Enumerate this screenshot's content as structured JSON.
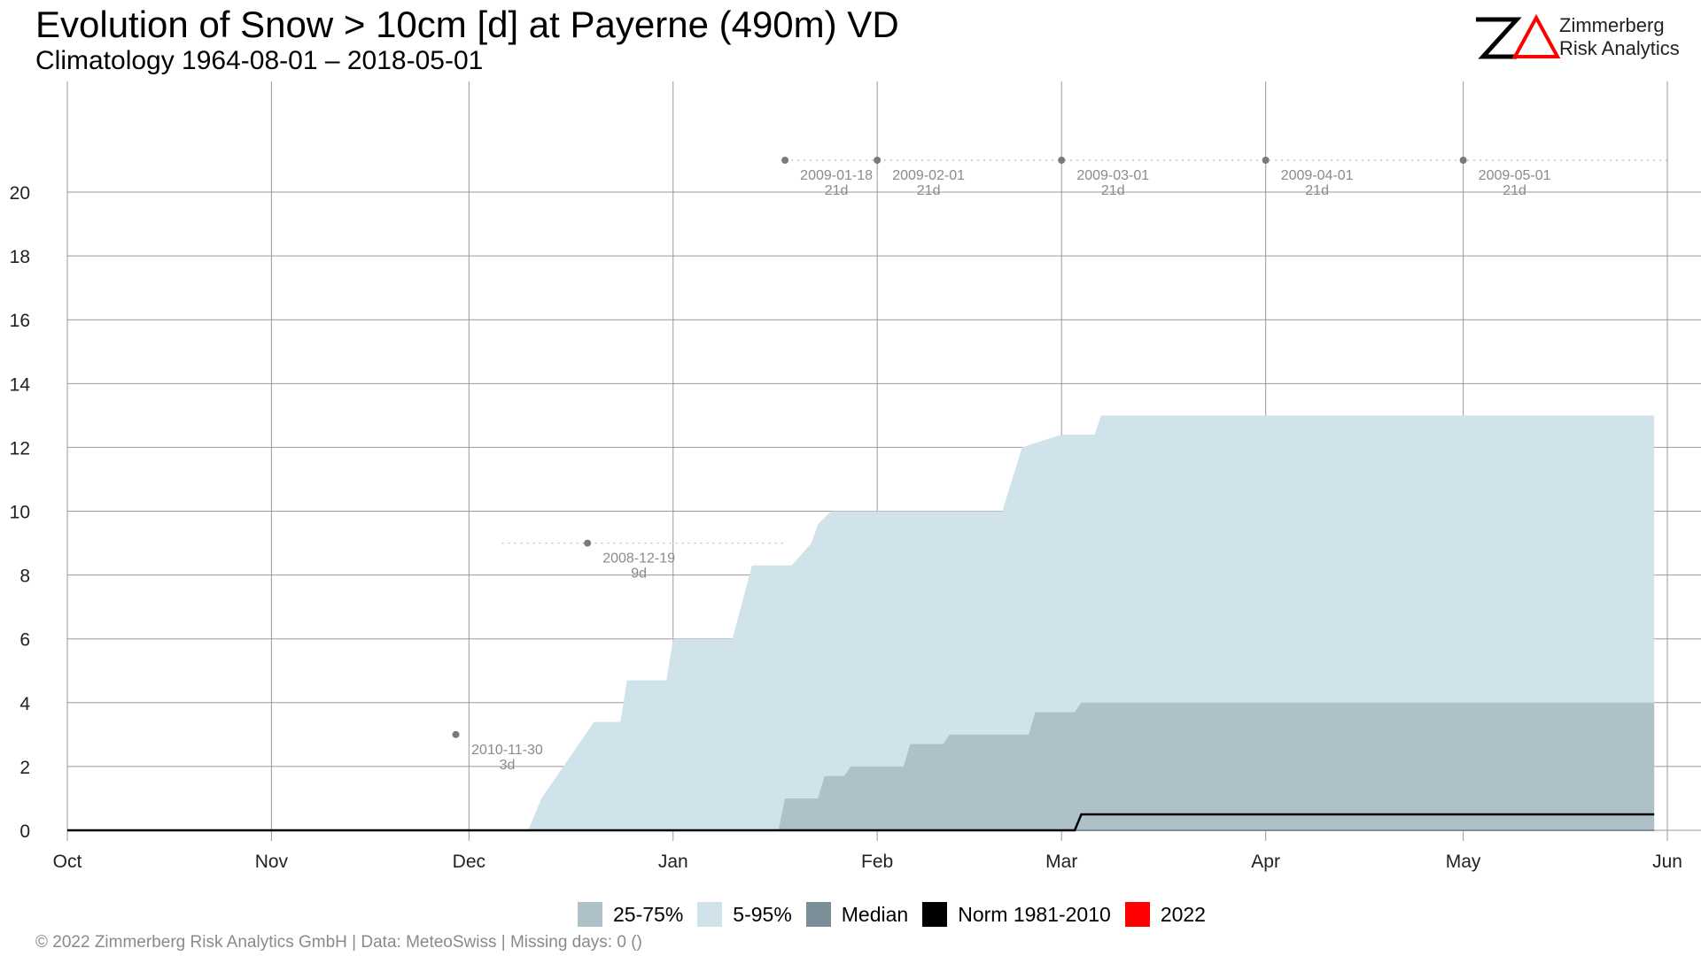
{
  "header": {
    "title": "Evolution of Snow > 10cm [d] at Payerne (490m) VD",
    "subtitle": "Climatology 1964-08-01 – 2018-05-01"
  },
  "logo": {
    "line1": "Zimmerberg",
    "line2": "Risk Analytics",
    "mark_colors": {
      "z": "#000000",
      "delta": "#ff0000"
    }
  },
  "colors": {
    "band_5_95": "#d0e3ea",
    "band_25_75": "#aec1c8",
    "median": "#7a8f98",
    "norm": "#000000",
    "current": "#ff0000",
    "grid": "#9a9a9a",
    "annotation": "#7a7a7a"
  },
  "legend": [
    {
      "label": "25-75%",
      "color": "#aec1c8"
    },
    {
      "label": "5-95%",
      "color": "#d0e3ea"
    },
    {
      "label": "Median",
      "color": "#7a8f98"
    },
    {
      "label": "Norm 1981-2010",
      "color": "#000000"
    },
    {
      "label": "2022",
      "color": "#ff0000"
    }
  ],
  "footer": "©  2022 Zimmerberg Risk Analytics GmbH | Data: MeteoSwiss | Missing days: 0 ()",
  "chart_data": {
    "type": "area",
    "title": "Evolution of Snow > 10cm [d] at Payerne (490m) VD",
    "subtitle": "Climatology 1964-08-01 – 2018-05-01",
    "xlabel": "",
    "ylabel": "",
    "x_ticks": [
      "Oct",
      "Nov",
      "Dec",
      "Jan",
      "Feb",
      "Mar",
      "Apr",
      "May",
      "Jun"
    ],
    "x_tick_dates": [
      "2021-10-01",
      "2021-11-01",
      "2021-12-01",
      "2022-01-01",
      "2022-02-01",
      "2022-03-01",
      "2022-04-01",
      "2022-05-01",
      "2022-06-01"
    ],
    "y_ticks": [
      0,
      2,
      4,
      6,
      8,
      10,
      12,
      14,
      16,
      18,
      20
    ],
    "ylim": [
      0,
      21
    ],
    "grid": true,
    "legend_position": "bottom",
    "series": [
      {
        "name": "5-95%",
        "kind": "band",
        "x": [
          "2021-10-01",
          "2021-12-10",
          "2021-12-12",
          "2021-12-20",
          "2021-12-24",
          "2021-12-25",
          "2021-12-31",
          "2022-01-01",
          "2022-01-10",
          "2022-01-13",
          "2022-01-19",
          "2022-01-22",
          "2022-01-23",
          "2022-01-25",
          "2022-02-20",
          "2022-02-23",
          "2022-03-01",
          "2022-03-06",
          "2022-03-07",
          "2022-05-30"
        ],
        "values": [
          0,
          0,
          1,
          3.4,
          3.4,
          4.7,
          4.7,
          6,
          6,
          8.3,
          8.3,
          9,
          9.6,
          10,
          10,
          12,
          12.4,
          12.4,
          13,
          13
        ]
      },
      {
        "name": "25-75%",
        "kind": "band",
        "x": [
          "2021-10-01",
          "2022-01-17",
          "2022-01-18",
          "2022-01-23",
          "2022-01-24",
          "2022-01-27",
          "2022-01-28",
          "2022-02-05",
          "2022-02-06",
          "2022-02-11",
          "2022-02-12",
          "2022-02-24",
          "2022-02-25",
          "2022-03-03",
          "2022-03-04",
          "2022-05-30"
        ],
        "values": [
          0,
          0,
          1,
          1,
          1.7,
          1.7,
          2,
          2,
          2.7,
          2.7,
          3,
          3,
          3.7,
          3.7,
          4,
          4
        ]
      },
      {
        "name": "Median",
        "kind": "line",
        "x": [
          "2021-10-01",
          "2022-05-30"
        ],
        "values": [
          0,
          0
        ]
      },
      {
        "name": "Norm 1981-2010",
        "kind": "line",
        "x": [
          "2021-10-01",
          "2022-03-03",
          "2022-03-04",
          "2022-05-30"
        ],
        "values": [
          0,
          0,
          0.5,
          0.5
        ]
      }
    ],
    "annotations": [
      {
        "date": "2021-11-29",
        "value": 3,
        "label_date": "2010-11-30",
        "label_days": "3d"
      },
      {
        "date": "2021-12-19",
        "value": 9,
        "label_date": "2008-12-19",
        "label_days": "9d"
      },
      {
        "date": "2022-01-18",
        "value": 21,
        "label_date": "2009-01-18",
        "label_days": "21d"
      },
      {
        "date": "2022-02-01",
        "value": 21,
        "label_date": "2009-02-01",
        "label_days": "21d"
      },
      {
        "date": "2022-03-01",
        "value": 21,
        "label_date": "2009-03-01",
        "label_days": "21d"
      },
      {
        "date": "2022-04-01",
        "value": 21,
        "label_date": "2009-04-01",
        "label_days": "21d"
      },
      {
        "date": "2022-05-01",
        "value": 21,
        "label_date": "2009-05-01",
        "label_days": "21d"
      }
    ]
  }
}
